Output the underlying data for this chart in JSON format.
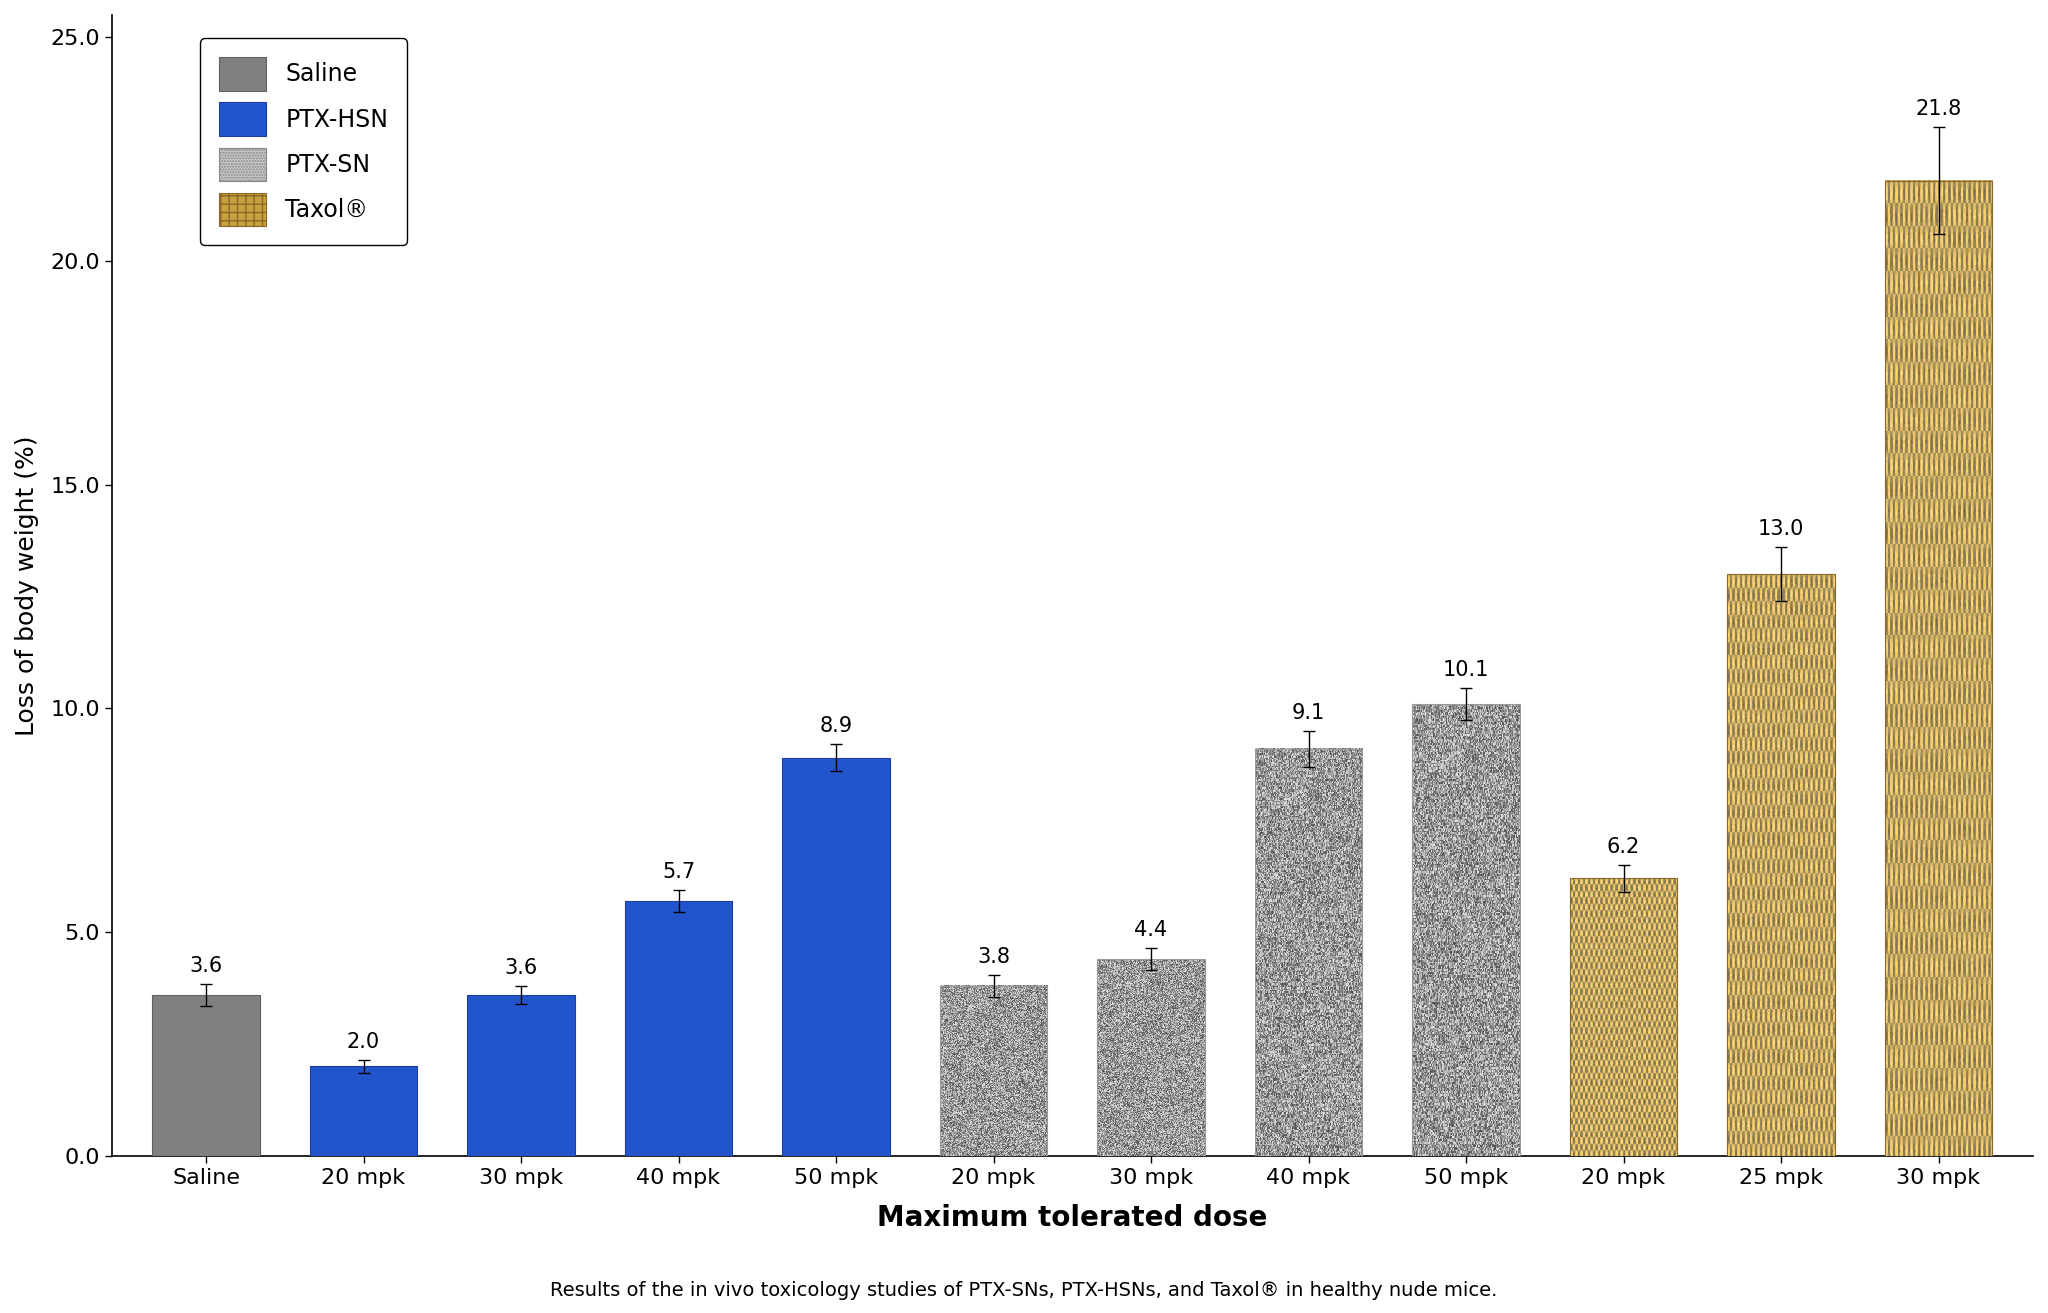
{
  "categories": [
    "Saline",
    "20 mpk",
    "30 mpk",
    "40 mpk",
    "50 mpk",
    "20 mpk",
    "30 mpk",
    "40 mpk",
    "50 mpk",
    "20 mpk",
    "25 mpk",
    "30 mpk"
  ],
  "values": [
    3.6,
    2.0,
    3.6,
    5.7,
    8.9,
    3.8,
    4.4,
    9.1,
    10.1,
    6.2,
    13.0,
    21.8
  ],
  "errors": [
    0.25,
    0.15,
    0.2,
    0.25,
    0.3,
    0.25,
    0.25,
    0.4,
    0.35,
    0.3,
    0.6,
    1.2
  ],
  "groups": [
    "saline",
    "hsn",
    "hsn",
    "hsn",
    "hsn",
    "sn",
    "sn",
    "sn",
    "sn",
    "taxol",
    "taxol",
    "taxol"
  ],
  "saline_color": "#808080",
  "hsn_color": "#2255CC",
  "ylabel": "Loss of body weight (%)",
  "xlabel": "Maximum tolerated dose",
  "ylim": [
    0,
    25.5
  ],
  "yticks": [
    0.0,
    5.0,
    10.0,
    15.0,
    20.0,
    25.0
  ],
  "caption": "Results of the in vivo toxicology studies of PTX-SNs, PTX-HSNs, and Taxol® in healthy nude mice.",
  "legend_labels": [
    "Saline",
    "PTX-HSN",
    "PTX-SN",
    "Taxol®"
  ],
  "label_fontsize": 18,
  "tick_fontsize": 16,
  "value_fontsize": 15,
  "caption_fontsize": 14,
  "xlabel_fontsize": 20
}
